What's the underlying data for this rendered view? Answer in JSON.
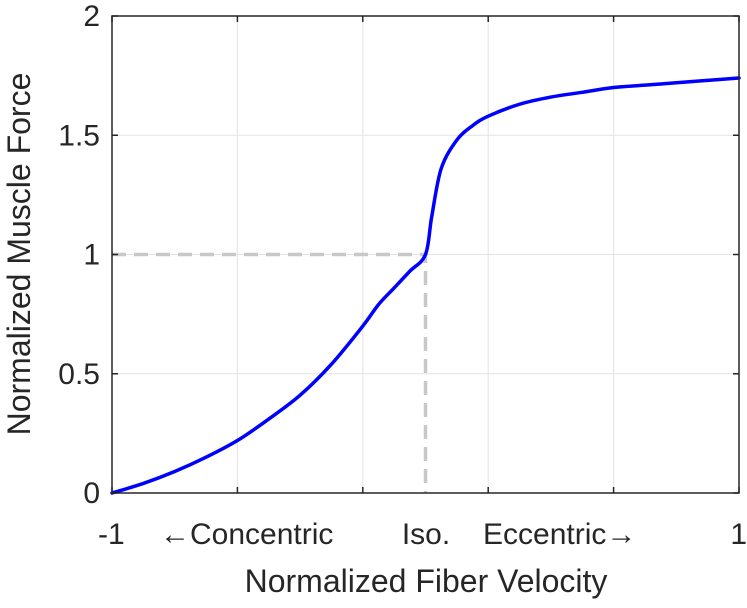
{
  "chart_data": {
    "type": "line",
    "xlabel": "Normalized Fiber Velocity",
    "ylabel": "Normalized Muscle Force",
    "xlim": [
      -1,
      1
    ],
    "ylim": [
      0,
      2
    ],
    "xticks": [
      -1,
      -0.6,
      -0.2,
      0.2,
      0.6,
      1
    ],
    "xtick_labels": [
      "-1",
      "",
      "",
      "",
      "",
      "1"
    ],
    "yticks": [
      0,
      0.5,
      1,
      1.5,
      2
    ],
    "ytick_labels": [
      "0",
      "0.5",
      "1",
      "1.5",
      "2"
    ],
    "grid": true,
    "region_labels": {
      "concentric": "←Concentric",
      "iso": "Iso.",
      "eccentric": "Eccentric→"
    },
    "reference_point": {
      "x": 0,
      "y": 1
    },
    "series": [
      {
        "color": "#0000ff",
        "x": [
          -1,
          -0.9,
          -0.8,
          -0.7,
          -0.6,
          -0.5,
          -0.4,
          -0.3,
          -0.2,
          -0.15,
          -0.1,
          -0.05,
          0,
          0.02,
          0.05,
          0.1,
          0.15,
          0.2,
          0.3,
          0.4,
          0.5,
          0.6,
          0.7,
          0.8,
          0.9,
          1
        ],
        "y": [
          0,
          0.04,
          0.09,
          0.15,
          0.22,
          0.31,
          0.41,
          0.54,
          0.7,
          0.79,
          0.86,
          0.93,
          1.0,
          1.16,
          1.36,
          1.48,
          1.54,
          1.58,
          1.63,
          1.66,
          1.68,
          1.7,
          1.71,
          1.72,
          1.73,
          1.74
        ]
      }
    ]
  }
}
